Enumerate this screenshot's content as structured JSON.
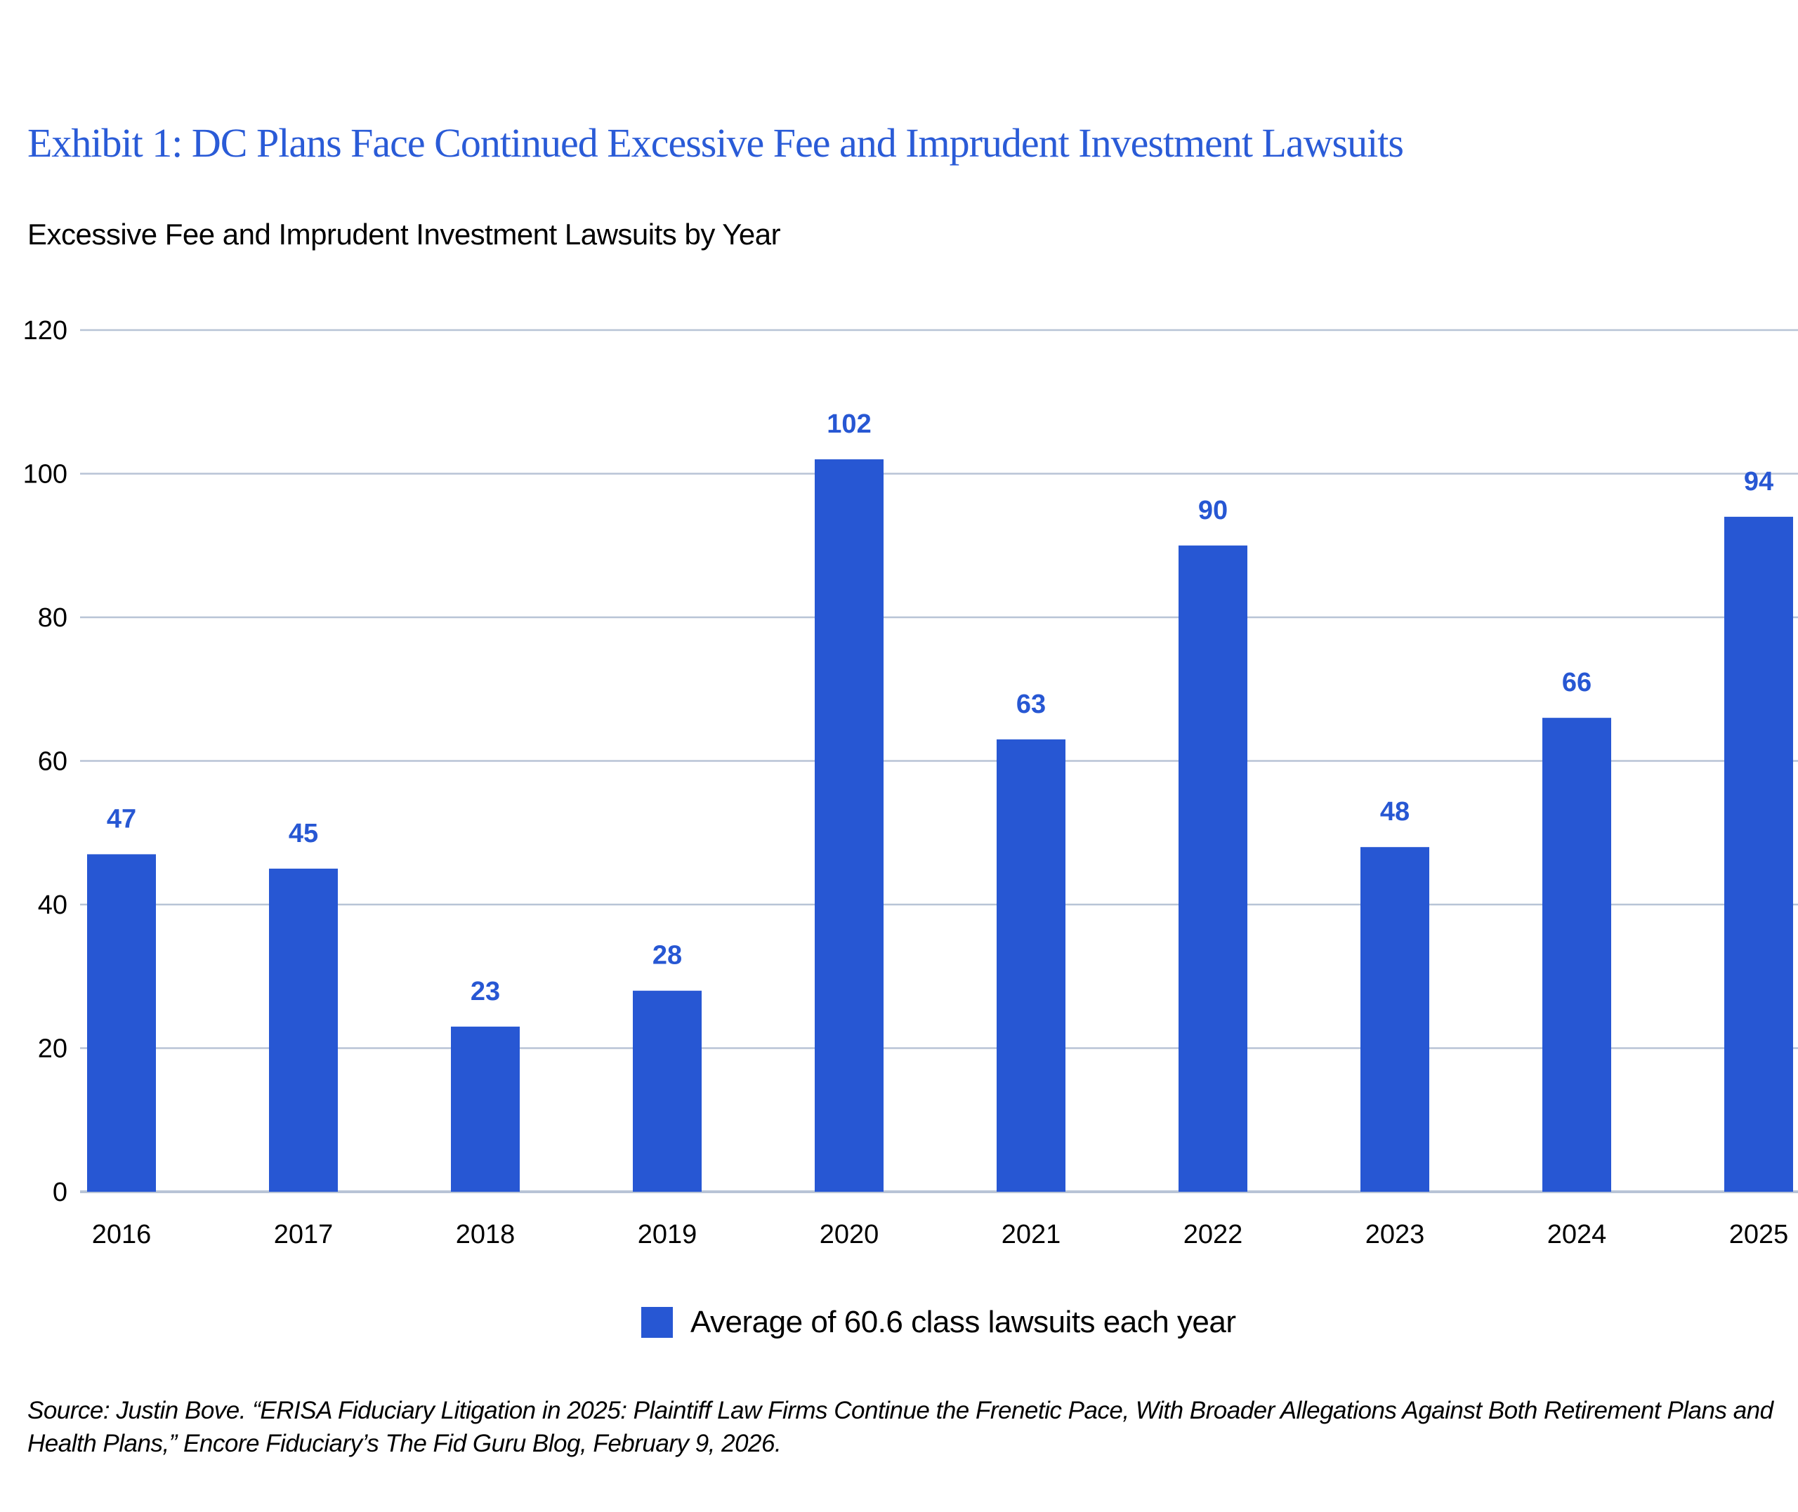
{
  "title": "Exhibit 1: DC Plans Face Continued Excessive Fee and Imprudent Investment Lawsuits",
  "source": "Source: Justin Bove. “ERISA Fiduciary Litigation in 2025: Plaintiff Law Firms Continue the Frenetic Pace, With Broader Allegations Against Both Retirement Plans and Health Plans,” Encore Fiduciary’s The Fid Guru Blog, February 9, 2026.",
  "chart_data": {
    "type": "bar",
    "title": "Excessive Fee and Imprudent Investment Lawsuits by Year",
    "xlabel": "",
    "ylabel": "",
    "categories": [
      "2016",
      "2017",
      "2018",
      "2019",
      "2020",
      "2021",
      "2022",
      "2023",
      "2024",
      "2025"
    ],
    "series": [
      {
        "name": "Average of 60.6 class lawsuits each year",
        "values": [
          47,
          45,
          23,
          28,
          102,
          63,
          90,
          48,
          66,
          94
        ]
      }
    ],
    "ylim": [
      0,
      120
    ],
    "yticks": [
      0,
      20,
      40,
      60,
      80,
      100,
      120
    ],
    "grid": true,
    "legend": "bottom-center",
    "data_labels": true,
    "colors": {
      "bar": "#2757d3",
      "label": "#2757d3",
      "title": "#2a5bd7",
      "grid": "#b8c4d6"
    }
  }
}
